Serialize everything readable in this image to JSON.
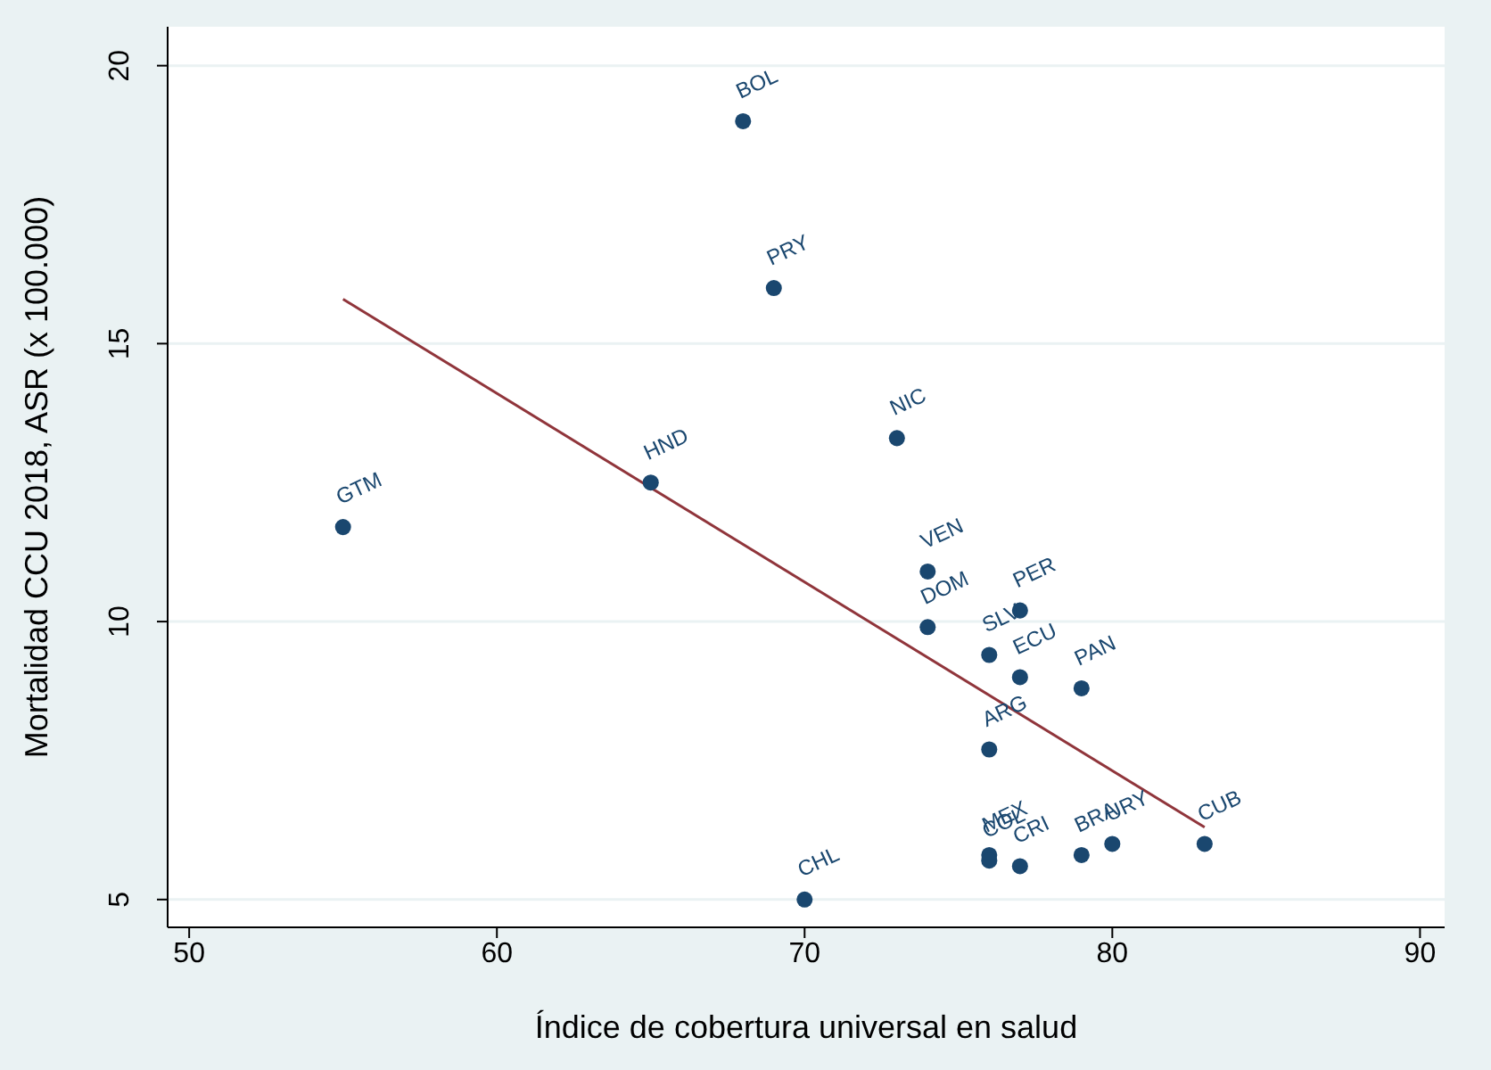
{
  "chart_data": {
    "type": "scatter",
    "xlabel": "Índice de cobertura universal en salud",
    "ylabel": "Mortalidad CCU 2018, ASR (x 100.000)",
    "xlim": [
      49.3,
      90.8
    ],
    "xticks": [
      50,
      60,
      70,
      80,
      90
    ],
    "ylim": [
      4.5,
      20.7
    ],
    "yticks": [
      5,
      10,
      15,
      20
    ],
    "grid": "y",
    "series": [
      {
        "marker": "circle",
        "color": "#1a476f",
        "x": [
          68,
          69,
          73,
          65,
          55,
          74,
          74,
          77,
          76,
          77,
          79,
          76,
          76,
          76,
          77,
          79,
          80,
          83,
          70
        ],
        "values": [
          19.0,
          16.0,
          13.3,
          12.5,
          11.7,
          10.9,
          9.9,
          10.2,
          9.4,
          9.0,
          8.8,
          7.7,
          5.8,
          5.7,
          5.6,
          5.8,
          6.0,
          6.0,
          5.0
        ],
        "value_labels": [
          "BOL",
          "PRY",
          "NIC",
          "HND",
          "GTM",
          "VEN",
          "DOM",
          "PER",
          "SLV",
          "ECU",
          "PAN",
          "ARG",
          "MEX",
          "COL",
          "CRI",
          "BRA",
          "URY",
          "CUB",
          "CHL"
        ]
      },
      {
        "type": "line",
        "color": "#90353b",
        "x": [
          55,
          83
        ],
        "values": [
          15.8,
          6.3
        ]
      }
    ]
  }
}
